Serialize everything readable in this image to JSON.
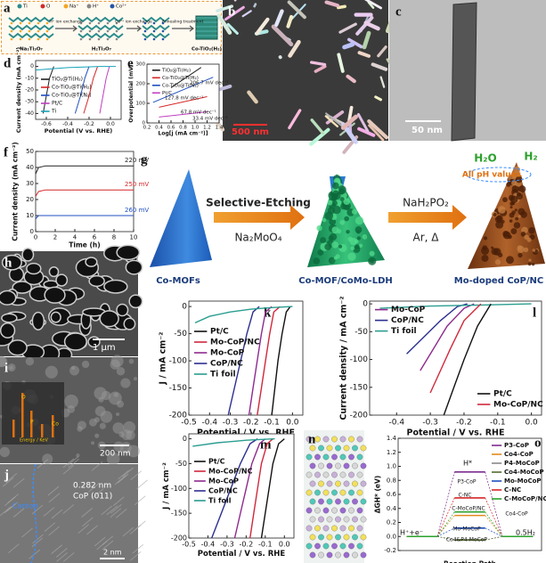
{
  "scheme_a": {
    "panel": "a",
    "legend": [
      "Ti",
      "O",
      "Na⁺",
      "H⁺",
      "Co²⁺"
    ],
    "steps": [
      "H⁺ ion exchange",
      "Co²⁺ ion exchange",
      "Annealing treatment"
    ],
    "materials": [
      "Na₂Ti₃O₇",
      "H₂Ti₃O₇",
      "Co-TiO₂(H₂)"
    ]
  },
  "images": [
    {
      "panel": "b",
      "texts": [
        "500 nm"
      ]
    },
    {
      "panel": "c",
      "texts": [
        "50 nm"
      ]
    },
    {
      "panel": "h",
      "texts": [
        "1 μm"
      ]
    },
    {
      "panel": "i",
      "texts": [
        "200 nm",
        "Energy / KeV",
        "O",
        "P",
        "Co"
      ]
    },
    {
      "panel": "j",
      "texts": [
        "0.282 nm",
        "CoP (011)",
        "Carbon",
        "2 nm"
      ]
    },
    {
      "panel": "n",
      "texts": []
    }
  ],
  "scheme_g": {
    "panel": "g",
    "materials": [
      "Co-MOFs",
      "Co-MOF/CoMo-LDH",
      "Mo-doped CoP/NC"
    ],
    "step1": [
      "Selective-Etching",
      "Na₂MoO₄"
    ],
    "step2": [
      "NaH₂PO₂",
      "Ar,  Δ"
    ],
    "products": [
      "H₂O",
      "H₂",
      "All pH values"
    ]
  },
  "chart_data": [
    {
      "panel": "d",
      "type": "line",
      "xlabel": "Potential (V vs. RHE)",
      "ylabel": "Current density (mA cm⁻²)",
      "xlim": [
        -0.7,
        0.1
      ],
      "xticks": [
        -0.6,
        -0.4,
        -0.2,
        {
          "value": 0,
          "label": "0.0"
        }
      ],
      "ylim": [
        -45,
        5
      ],
      "yticks": [
        0,
        -10,
        -20,
        -30,
        -40
      ],
      "legend": "lower left",
      "series": [
        {
          "name": "TiO₂@Ti(H₂)",
          "color": "#222222",
          "x": [
            -0.63,
            -0.6,
            -0.57,
            -0.53
          ],
          "values": [
            -40,
            -25,
            -10,
            0
          ]
        },
        {
          "name": "Co-TiO₂@Ti(H₂)",
          "color": "#d62728",
          "x": [
            -0.25,
            -0.2,
            -0.16,
            -0.12
          ],
          "values": [
            -40,
            -25,
            -10,
            0
          ]
        },
        {
          "name": "Co-TiO₂@Ti(N₂)",
          "color": "#1f4fbf",
          "x": [
            -0.33,
            -0.28,
            -0.24,
            -0.2
          ],
          "values": [
            -40,
            -25,
            -10,
            0
          ]
        },
        {
          "name": "Pt/C",
          "color": "#c03fc0",
          "x": [
            -0.1,
            -0.07,
            -0.04,
            -0.01
          ],
          "values": [
            -40,
            -25,
            -10,
            0
          ]
        },
        {
          "name": "Ti",
          "color": "#17a2b8",
          "x": [
            -0.7,
            -0.4,
            -0.1,
            0.05
          ],
          "values": [
            -3,
            -1,
            0,
            0
          ]
        }
      ],
      "annotations": []
    },
    {
      "panel": "e",
      "type": "line",
      "xlabel": "Log[j (mA cm⁻²)]",
      "ylabel": "Overpotential (mV)",
      "xlim": [
        0.2,
        1.4
      ],
      "xticks": [
        0.2,
        0.4,
        0.6,
        0.8,
        {
          "value": 1,
          "label": "1.0"
        },
        1.2,
        1.4
      ],
      "ylim": [
        0,
        300
      ],
      "yticks": [
        0,
        100,
        200,
        300
      ],
      "legend": "upper left",
      "series": [
        {
          "name": "TiO₂@Ti(H₂)",
          "color": "#222222",
          "x": [
            0.6,
            1.1
          ],
          "values": [
            180,
            283
          ]
        },
        {
          "name": "Co-TiO₂@Ti(H₂)",
          "color": "#d62728",
          "x": [
            0.4,
            1.2
          ],
          "values": [
            80,
            134
          ]
        },
        {
          "name": "Co-TiO₂@Ti(N₂)",
          "color": "#1f4fbf",
          "x": [
            0.3,
            1.3
          ],
          "values": [
            105,
            233
          ]
        },
        {
          "name": "Pt/C",
          "color": "#c03fc0",
          "x": [
            0.4,
            1.2
          ],
          "values": [
            30,
            57
          ]
        }
      ],
      "annotations": [
        "206.7 mV dec⁻¹",
        "127.8 mV dec⁻¹",
        "67.8 mV dec⁻¹",
        "33.4 mV dec⁻¹"
      ]
    },
    {
      "panel": "f",
      "type": "line",
      "xlabel": "Time (h)",
      "ylabel": "Current density (mA cm⁻²)",
      "xlim": [
        0,
        10
      ],
      "xticks": [
        0,
        2,
        4,
        6,
        8,
        10
      ],
      "ylim": [
        0,
        50
      ],
      "yticks": [
        0,
        10,
        20,
        30,
        40,
        50
      ],
      "series": [
        {
          "color": "#222222",
          "x": [
            0,
            0.3,
            1,
            10
          ],
          "values": [
            36,
            40,
            41,
            41
          ]
        },
        {
          "color": "#d62728",
          "x": [
            0,
            0.3,
            1,
            10
          ],
          "values": [
            22,
            25,
            26,
            26
          ]
        },
        {
          "color": "#1f4fbf",
          "x": [
            0,
            0.3,
            1,
            10
          ],
          "values": [
            8,
            10,
            10,
            10
          ]
        }
      ],
      "annotations": [
        "220 mV",
        "250 mV",
        "260 mV"
      ]
    },
    {
      "panel": "k",
      "type": "line",
      "xlabel": "Potential / V vs. RHE",
      "ylabel": "J / mA cm⁻²",
      "xlim": [
        -0.5,
        0.05
      ],
      "xticks": [
        -0.5,
        -0.4,
        -0.3,
        -0.2,
        -0.1,
        {
          "value": 0,
          "label": "0.0"
        }
      ],
      "ylim": [
        -200,
        10
      ],
      "yticks": [
        0,
        -50,
        -100,
        -150,
        -200
      ],
      "legend": "center left",
      "series": [
        {
          "name": "Pt/C",
          "color": "#111111",
          "x": [
            -0.1,
            -0.085,
            -0.07,
            -0.05,
            -0.03,
            -0.01
          ],
          "values": [
            -200,
            -150,
            -100,
            -50,
            -10,
            0
          ]
        },
        {
          "name": "Mo-CoP/NC",
          "color": "#d0283c",
          "x": [
            -0.17,
            -0.15,
            -0.13,
            -0.11,
            -0.09,
            -0.06
          ],
          "values": [
            -200,
            -150,
            -100,
            -50,
            -10,
            0
          ]
        },
        {
          "name": "Mo-CoP",
          "color": "#8e2a8e",
          "x": [
            -0.21,
            -0.19,
            -0.17,
            -0.15,
            -0.13,
            -0.1
          ],
          "values": [
            -200,
            -150,
            -100,
            -50,
            -10,
            0
          ]
        },
        {
          "name": "CoP/NC",
          "color": "#2b2f8f",
          "x": [
            -0.31,
            -0.28,
            -0.25,
            -0.22,
            -0.19,
            -0.16
          ],
          "values": [
            -200,
            -150,
            -100,
            -50,
            -10,
            0
          ]
        },
        {
          "name": "Ti foil",
          "color": "#2a9d8f",
          "x": [
            -0.47,
            -0.4,
            -0.3,
            -0.2,
            -0.1,
            0
          ],
          "values": [
            -30,
            -18,
            -10,
            -5,
            -2,
            0
          ]
        }
      ],
      "annotations": []
    },
    {
      "panel": "l",
      "type": "line",
      "xlabel": "Potential / V vs. RHE",
      "ylabel": "Current density / mA cm⁻²",
      "xlim": [
        -0.48,
        0.03
      ],
      "xticks": [
        -0.4,
        -0.3,
        -0.2,
        -0.1,
        {
          "value": 0,
          "label": "0.0"
        }
      ],
      "ylim": [
        -200,
        5
      ],
      "yticks": [
        0,
        -50,
        -100,
        -150,
        -200
      ],
      "legend": "upper left",
      "series": [
        {
          "name": "Mo-CoP",
          "color": "#8e2a8e",
          "x": [
            -0.33,
            -0.29,
            -0.25,
            -0.2,
            -0.17
          ],
          "values": [
            -120,
            -80,
            -40,
            -8,
            0
          ]
        },
        {
          "name": "CoP/NC",
          "color": "#2b2f8f",
          "x": [
            -0.37,
            -0.32,
            -0.27,
            -0.22,
            -0.19
          ],
          "values": [
            -90,
            -60,
            -30,
            -5,
            0
          ]
        },
        {
          "name": "Ti foil",
          "color": "#2a9d8f",
          "x": [
            -0.45,
            -0.3,
            -0.15,
            0
          ],
          "values": [
            -8,
            -4,
            -2,
            0
          ]
        },
        {
          "name": "Pt/C",
          "color": "#111111",
          "legend": "lower right",
          "x": [
            -0.26,
            -0.23,
            -0.2,
            -0.16,
            -0.12
          ],
          "values": [
            -200,
            -150,
            -100,
            -40,
            0
          ]
        },
        {
          "name": "Mo-CoP/NC",
          "color": "#d0283c",
          "legend": "lower right",
          "x": [
            -0.3,
            -0.27,
            -0.24,
            -0.2,
            -0.15
          ],
          "values": [
            -160,
            -120,
            -80,
            -30,
            0
          ]
        }
      ],
      "annotations": []
    },
    {
      "panel": "m",
      "type": "line",
      "xlabel": "Potential / V vs. RHE",
      "ylabel": "J / mA cm⁻²",
      "xlim": [
        -0.5,
        0.05
      ],
      "xticks": [
        -0.5,
        -0.4,
        -0.3,
        -0.2,
        -0.1,
        {
          "value": 0,
          "label": "0.0"
        }
      ],
      "ylim": [
        -200,
        10
      ],
      "yticks": [
        0,
        -50,
        -100,
        -150,
        -200
      ],
      "legend": "center left",
      "series": [
        {
          "name": "Pt/C",
          "color": "#111111",
          "x": [
            -0.12,
            -0.1,
            -0.08,
            -0.06,
            -0.03,
            0
          ],
          "values": [
            -200,
            -150,
            -100,
            -50,
            -10,
            0
          ]
        },
        {
          "name": "Mo-CoP/NC",
          "color": "#d0283c",
          "x": [
            -0.18,
            -0.16,
            -0.14,
            -0.12,
            -0.09,
            -0.06
          ],
          "values": [
            -200,
            -150,
            -100,
            -50,
            -10,
            0
          ]
        },
        {
          "name": "Mo-CoP",
          "color": "#8e2a8e",
          "x": [
            -0.26,
            -0.23,
            -0.2,
            -0.17,
            -0.13,
            -0.1
          ],
          "values": [
            -200,
            -150,
            -100,
            -50,
            -10,
            0
          ]
        },
        {
          "name": "CoP/NC",
          "color": "#2b2f8f",
          "x": [
            -0.38,
            -0.33,
            -0.28,
            -0.23,
            -0.18,
            -0.14
          ],
          "values": [
            -200,
            -150,
            -100,
            -50,
            -10,
            0
          ]
        },
        {
          "name": "Ti foil",
          "color": "#2a9d8f",
          "x": [
            -0.48,
            -0.35,
            -0.2,
            -0.05
          ],
          "values": [
            -15,
            -8,
            -3,
            0
          ]
        }
      ],
      "annotations": []
    },
    {
      "panel": "o",
      "type": "energy",
      "xlabel": "Reaction Path",
      "ylabel": "ΔGH* (eV)",
      "categories": [
        "H⁺+e⁻",
        "H*",
        "0.5H₂"
      ],
      "ylim": [
        -0.2,
        1.4
      ],
      "yticks": [
        -0.2,
        {
          "value": 0,
          "label": "0.0"
        },
        0.2,
        0.4,
        0.6,
        0.8,
        {
          "value": 1,
          "label": "1.0"
        },
        1.2,
        1.4
      ],
      "legend": "upper right",
      "series": [
        {
          "name": "P3-CoP",
          "color": "#7b2d8e",
          "values": [
            0,
            0.92,
            0
          ]
        },
        {
          "name": "Co4-CoP",
          "color": "#e08a1e",
          "values": [
            0,
            0.3,
            0
          ]
        },
        {
          "name": "P4-MoCoP",
          "color": "#888888",
          "values": [
            0,
            -0.05,
            0
          ]
        },
        {
          "name": "Co4-MoCoP",
          "color": "#556b2f",
          "values": [
            0,
            -0.05,
            0
          ]
        },
        {
          "name": "Mo-MoCoP",
          "color": "#1f4fbf",
          "values": [
            0,
            0.12,
            0
          ]
        },
        {
          "name": "C-NC",
          "color": "#d62728",
          "values": [
            0,
            0.55,
            0
          ]
        },
        {
          "name": "C-MoCoP/NC",
          "color": "#2ca02c",
          "values": [
            0,
            0.35,
            0
          ]
        }
      ],
      "annotations": [
        "P3-CoP",
        "C-NC",
        "C-MoCoP/NC",
        "Co4-CoP",
        "Mo-MoCoP",
        "Co4&P4-MoCoP"
      ]
    }
  ]
}
